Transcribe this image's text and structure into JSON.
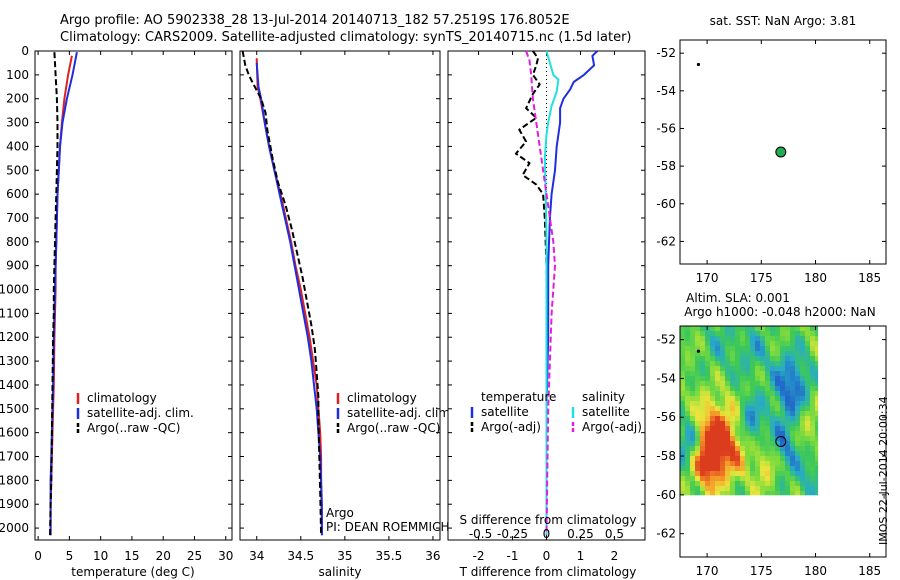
{
  "header": {
    "line1": "Argo profile: AO 5902338_28 13-Jul-2014 20140713_182 57.2519S 176.8052E",
    "line2": "Climatology: CARS2009. Satellite-adjusted climatology: synTS_20140715.nc (1.5d later)"
  },
  "colors": {
    "climatology": "#e02020",
    "satellite": "#1f2ee0",
    "argo": "#000000",
    "sal_satellite": "#22e0e0",
    "sal_argo": "#e020e0",
    "marker": "#22aa55"
  },
  "chart_data": [
    {
      "id": "temperature",
      "type": "line",
      "xlabel": "temperature (deg C)",
      "ylabel": "",
      "xlim": [
        -0.5,
        31
      ],
      "ylim": [
        2050,
        0
      ],
      "xticks": [
        0,
        5,
        10,
        15,
        20,
        25,
        30
      ],
      "xtick_labels": [
        "0",
        "5",
        "10",
        "15",
        "20",
        "25",
        "30"
      ],
      "yticks": [
        0,
        100,
        200,
        300,
        400,
        500,
        600,
        700,
        800,
        900,
        1000,
        1100,
        1200,
        1300,
        1400,
        1500,
        1600,
        1700,
        1800,
        1900,
        2000
      ],
      "legend": [
        "climatology",
        "satellite-adj. clim.",
        "Argo(..raw -QC)"
      ],
      "series": [
        {
          "name": "climatology",
          "style": "solid",
          "x": [
            5.4,
            4.8,
            4.2,
            3.8,
            3.5,
            3.3,
            3.1,
            3.0,
            2.9,
            2.8,
            2.8,
            2.7,
            2.6,
            2.5,
            2.4,
            2.3,
            2.2,
            2.1,
            2.0,
            2.0
          ],
          "y": [
            20,
            100,
            200,
            300,
            400,
            500,
            600,
            700,
            800,
            900,
            1000,
            1100,
            1200,
            1400,
            1500,
            1600,
            1700,
            1800,
            1900,
            2030
          ]
        },
        {
          "name": "satellite-adj. clim.",
          "style": "solid",
          "x": [
            6.2,
            5.5,
            4.6,
            3.9,
            3.5,
            3.3,
            3.1,
            3.0,
            2.9,
            2.8,
            2.7,
            2.6,
            2.5,
            2.4,
            2.3,
            2.2,
            2.1,
            2.0,
            2.0
          ],
          "y": [
            5,
            100,
            200,
            300,
            400,
            500,
            600,
            700,
            800,
            900,
            1000,
            1100,
            1200,
            1400,
            1500,
            1600,
            1700,
            1800,
            2030
          ]
        },
        {
          "name": "Argo(..raw -QC)",
          "style": "dashed",
          "x": [
            2.6,
            2.8,
            3.0,
            3.1,
            3.1,
            3.0,
            2.9,
            2.8,
            2.7,
            2.6,
            2.5,
            2.5,
            2.4,
            2.3,
            2.2,
            2.1,
            2.0,
            1.9
          ],
          "y": [
            5,
            100,
            200,
            300,
            400,
            500,
            600,
            700,
            800,
            900,
            1000,
            1100,
            1200,
            1400,
            1600,
            1800,
            1900,
            2030
          ]
        }
      ]
    },
    {
      "id": "salinity",
      "type": "line",
      "xlabel": "salinity",
      "ylabel": "",
      "xlim": [
        33.81,
        36.08
      ],
      "ylim": [
        2050,
        0
      ],
      "xticks": [
        34,
        34.5,
        35,
        35.5,
        36
      ],
      "xtick_labels": [
        "34",
        "34.5",
        "35",
        "35.5",
        "36"
      ],
      "legend": [
        "climatology",
        "satellite-adj. clim.",
        "Argo(..raw -QC)"
      ],
      "annotation": [
        "Argo",
        "PI: DEAN ROEMMICH"
      ],
      "series": [
        {
          "name": "climatology",
          "style": "solid",
          "x": [
            34.0,
            34.01,
            34.04,
            34.09,
            34.14,
            34.2,
            34.27,
            34.33,
            34.39,
            34.44,
            34.5,
            34.55,
            34.6,
            34.64,
            34.68,
            34.7,
            34.72,
            34.73,
            34.73,
            34.74
          ],
          "y": [
            30,
            150,
            200,
            300,
            400,
            500,
            600,
            700,
            800,
            900,
            1000,
            1100,
            1200,
            1300,
            1400,
            1500,
            1600,
            1700,
            1800,
            2030
          ]
        },
        {
          "name": "satellite-adj. clim.",
          "style": "solid",
          "x": [
            34.0,
            34.02,
            34.05,
            34.09,
            34.14,
            34.2,
            34.26,
            34.32,
            34.38,
            34.43,
            34.48,
            34.53,
            34.58,
            34.62,
            34.65,
            34.68,
            34.7,
            34.72,
            34.73,
            34.74,
            34.74
          ],
          "y": [
            50,
            150,
            200,
            300,
            400,
            500,
            600,
            700,
            800,
            900,
            1000,
            1100,
            1200,
            1300,
            1400,
            1500,
            1600,
            1700,
            1800,
            1900,
            2030
          ]
        },
        {
          "name": "Argo(..raw -QC)",
          "style": "dashed",
          "x": [
            33.84,
            33.87,
            33.91,
            33.95,
            34.05,
            34.1,
            34.12,
            34.18,
            34.24,
            34.33,
            34.4,
            34.46,
            34.52,
            34.57,
            34.62,
            34.66,
            34.68,
            34.7,
            34.7,
            34.71,
            34.72,
            34.73
          ],
          "y": [
            0,
            60,
            100,
            130,
            200,
            260,
            330,
            450,
            550,
            650,
            750,
            850,
            950,
            1050,
            1150,
            1250,
            1350,
            1450,
            1550,
            1700,
            1850,
            2030
          ]
        }
      ]
    },
    {
      "id": "difference",
      "type": "line",
      "xlabel": "T difference from climatology",
      "xlabel2": "S difference from climatology",
      "xlim": [
        -2.9,
        2.9
      ],
      "ylim": [
        2050,
        0
      ],
      "xticks": [
        -2,
        -1,
        0,
        1,
        2
      ],
      "xtick_labels": [
        "-2",
        "-1",
        "0",
        "1",
        "2"
      ],
      "xticks2": [
        -2,
        -1,
        0,
        1,
        2
      ],
      "xtick_labels2": [
        "-0.5",
        "-0.25",
        "0",
        "0.25",
        "0.5"
      ],
      "legend_titles": [
        "temperature",
        "salinity"
      ],
      "legend": [
        "satellite",
        "Argo(-adj)",
        "satellite",
        "Argo(-adj)"
      ],
      "series": [
        {
          "name": "temperature satellite",
          "style": "solid",
          "x": [
            1.5,
            1.35,
            1.4,
            1.1,
            0.8,
            0.7,
            0.5,
            0.4,
            0.4,
            0.3,
            0.25,
            0.15,
            0.1,
            0.05,
            0.05,
            0.0,
            0.0,
            0.0
          ],
          "y": [
            0,
            20,
            60,
            100,
            130,
            160,
            200,
            240,
            300,
            400,
            500,
            600,
            700,
            900,
            1200,
            1500,
            1800,
            2030
          ]
        },
        {
          "name": "temperature Argo(-adj)",
          "style": "dashed",
          "x": [
            -0.4,
            -0.25,
            -0.3,
            -0.4,
            -0.2,
            -0.4,
            -0.6,
            -0.3,
            -0.8,
            -0.6,
            -0.9,
            -0.5,
            -0.7,
            -0.3,
            -0.1,
            -0.05,
            0.0,
            0.0,
            0.0
          ],
          "y": [
            0,
            30,
            60,
            100,
            140,
            180,
            240,
            280,
            330,
            380,
            430,
            470,
            520,
            560,
            600,
            700,
            900,
            1300,
            2030
          ]
        },
        {
          "name": "salinity satellite",
          "style": "solid",
          "x": [
            0.0,
            0.1,
            0.2,
            0.35,
            0.3,
            0.15,
            0.05,
            0.0,
            -0.05,
            -0.02,
            0.0,
            0.0,
            0.0
          ],
          "y": [
            0,
            50,
            100,
            120,
            170,
            230,
            300,
            350,
            450,
            600,
            800,
            1200,
            2030
          ]
        },
        {
          "name": "salinity Argo(-adj)",
          "style": "dashed",
          "x": [
            -0.6,
            -0.5,
            -0.45,
            -0.4,
            -0.3,
            -0.2,
            -0.1,
            0.0,
            0.1,
            0.2,
            0.25,
            0.2,
            0.15,
            0.1,
            0.05,
            0.02,
            0.0
          ],
          "y": [
            0,
            40,
            100,
            200,
            300,
            400,
            500,
            600,
            700,
            800,
            900,
            1000,
            1100,
            1300,
            1500,
            1800,
            2030
          ]
        }
      ]
    },
    {
      "id": "map_sst",
      "type": "scatter",
      "title": "sat. SST: NaN Argo: 3.81",
      "xlim": [
        167.5,
        186.5
      ],
      "ylim": [
        -63.2,
        -51.3
      ],
      "xticks": [
        170,
        175,
        180,
        185
      ],
      "xtick_labels": [
        "170",
        "175",
        "180",
        "185"
      ],
      "yticks": [
        -52,
        -54,
        -56,
        -58,
        -60,
        -62
      ],
      "ytick_labels": [
        "-52",
        "-54",
        "-56",
        "-58",
        "-60",
        "-62"
      ],
      "points": [
        {
          "name": "reference dot",
          "lon": 169.2,
          "lat": -52.6
        },
        {
          "name": "Argo position",
          "lon": 176.8,
          "lat": -57.25
        }
      ]
    },
    {
      "id": "map_sla",
      "type": "heatmap",
      "title1": "Altim. SLA: 0.001",
      "title2": "Argo h1000: -0.048 h2000: NaN",
      "xlim": [
        167.5,
        186.5
      ],
      "ylim": [
        -63.2,
        -51.3
      ],
      "field_extent": {
        "lon": [
          167.5,
          180.2
        ],
        "lat": [
          -60.0,
          -51.3
        ]
      },
      "xticks": [
        170,
        175,
        180,
        185
      ],
      "xtick_labels": [
        "170",
        "175",
        "180",
        "185"
      ],
      "yticks": [
        -52,
        -54,
        -56,
        -58,
        -60,
        -62
      ],
      "ytick_labels": [
        "-52",
        "-54",
        "-56",
        "-58",
        "-60",
        "-62"
      ],
      "side_label": "IMOS 22-Jul-2014 20:00:34",
      "points": [
        {
          "name": "reference dot",
          "lon": 169.2,
          "lat": -52.6
        },
        {
          "name": "Argo position",
          "lon": 176.8,
          "lat": -57.25
        }
      ],
      "blobs": [
        {
          "lon": 170.8,
          "lat": -56.8,
          "amp": 2.0,
          "sigma": 1.3
        },
        {
          "lon": 170.2,
          "lat": -58.3,
          "amp": 2.2,
          "sigma": 1.0
        },
        {
          "lon": 172.6,
          "lat": -57.6,
          "amp": 1.2,
          "sigma": 1.0
        },
        {
          "lon": 168.3,
          "lat": -57.3,
          "amp": -1.6,
          "sigma": 0.8
        },
        {
          "lon": 177.8,
          "lat": -54.4,
          "amp": -1.9,
          "sigma": 1.2
        },
        {
          "lon": 174.0,
          "lat": -56.3,
          "amp": -1.5,
          "sigma": 0.9
        },
        {
          "lon": 177.2,
          "lat": -57.5,
          "amp": -1.3,
          "sigma": 1.0
        },
        {
          "lon": 175.4,
          "lat": -58.5,
          "amp": 1.0,
          "sigma": 0.8
        },
        {
          "lon": 171.5,
          "lat": -52.2,
          "amp": -0.6,
          "sigma": 1.5
        },
        {
          "lon": 179.2,
          "lat": -56.4,
          "amp": 0.8,
          "sigma": 0.9
        },
        {
          "lon": 174.5,
          "lat": -52.6,
          "amp": -0.7,
          "sigma": 1.0
        },
        {
          "lon": 179.5,
          "lat": -59.2,
          "amp": -0.8,
          "sigma": 1.0
        }
      ]
    }
  ]
}
